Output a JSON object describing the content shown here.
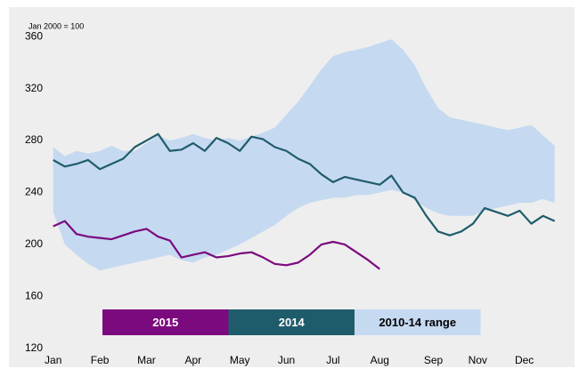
{
  "chart_data": {
    "type": "line",
    "annotation": "Jan 2000 = 100",
    "x": [
      0,
      0.25,
      0.5,
      0.75,
      1,
      1.25,
      1.5,
      1.75,
      2,
      2.25,
      2.5,
      2.75,
      3,
      3.25,
      3.5,
      3.75,
      4,
      4.25,
      4.5,
      4.75,
      5,
      5.25,
      5.5,
      5.75,
      6,
      6.25,
      6.5,
      6.75,
      7,
      7.25,
      7.5,
      7.75,
      8,
      8.25,
      8.5,
      8.75,
      9,
      9.25,
      9.5,
      9.75,
      10,
      10.25,
      10.5,
      10.75
    ],
    "series": [
      {
        "name": "2015",
        "color": "#7b0a7e",
        "values": [
          214,
          218,
          208,
          206,
          205,
          204,
          207,
          210,
          212,
          206,
          203,
          190,
          192,
          194,
          190,
          191,
          193,
          194,
          190,
          185,
          184,
          186,
          192,
          200,
          202,
          200,
          194,
          188,
          181,
          null,
          null,
          null,
          null,
          null,
          null,
          null,
          null,
          null,
          null,
          null,
          null,
          null,
          null,
          null
        ]
      },
      {
        "name": "2014",
        "color": "#1f5c6b",
        "values": [
          265,
          260,
          262,
          265,
          258,
          262,
          266,
          275,
          280,
          285,
          272,
          273,
          278,
          272,
          282,
          278,
          272,
          283,
          281,
          275,
          272,
          266,
          262,
          254,
          248,
          252,
          250,
          248,
          246,
          253,
          240,
          236,
          222,
          210,
          207,
          210,
          216,
          228,
          225,
          222,
          226,
          216,
          222,
          218
        ]
      },
      {
        "name": "2010-14 range",
        "color": "#c5d9f1",
        "type": "band",
        "upper": [
          275,
          268,
          272,
          270,
          272,
          276,
          272,
          272,
          278,
          284,
          280,
          282,
          285,
          282,
          280,
          282,
          280,
          283,
          286,
          290,
          300,
          310,
          322,
          335,
          345,
          348,
          350,
          352,
          355,
          358,
          350,
          338,
          320,
          305,
          298,
          296,
          294,
          292,
          290,
          288,
          290,
          292,
          284,
          276
        ],
        "lower": [
          225,
          200,
          192,
          185,
          180,
          182,
          184,
          186,
          188,
          190,
          192,
          188,
          186,
          190,
          192,
          196,
          200,
          205,
          210,
          215,
          222,
          228,
          232,
          234,
          236,
          236,
          238,
          238,
          240,
          242,
          240,
          234,
          228,
          224,
          222,
          222,
          222,
          226,
          228,
          230,
          232,
          232,
          235,
          232
        ]
      }
    ],
    "xlim": [
      -0.3,
      11.1
    ],
    "xticks": [
      {
        "value": 0,
        "label": "Jan"
      },
      {
        "value": 1,
        "label": "Feb"
      },
      {
        "value": 2,
        "label": "Mar"
      },
      {
        "value": 3,
        "label": "Apr"
      },
      {
        "value": 4,
        "label": "May"
      },
      {
        "value": 5,
        "label": "Jun"
      },
      {
        "value": 6,
        "label": "Jul"
      },
      {
        "value": 7,
        "label": "Aug"
      },
      {
        "value": 8.15,
        "label": "Sep"
      },
      {
        "value": 9.1,
        "label": "Nov"
      },
      {
        "value": 10.1,
        "label": "Dec"
      }
    ],
    "ylim": [
      113,
      380
    ],
    "yticks": [
      120,
      160,
      200,
      240,
      280,
      320,
      360
    ]
  }
}
